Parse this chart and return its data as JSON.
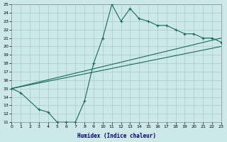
{
  "xlabel": "Humidex (Indice chaleur)",
  "bg_color": "#cce8e8",
  "grid_color": "#aacccc",
  "line_color": "#1a6a5a",
  "xlim": [
    0,
    23
  ],
  "ylim": [
    11,
    25
  ],
  "xticks": [
    0,
    1,
    2,
    3,
    4,
    5,
    6,
    7,
    8,
    9,
    10,
    11,
    12,
    13,
    14,
    15,
    16,
    17,
    18,
    19,
    20,
    21,
    22,
    23
  ],
  "yticks": [
    11,
    12,
    13,
    14,
    15,
    16,
    17,
    18,
    19,
    20,
    21,
    22,
    23,
    24,
    25
  ],
  "curve_x": [
    0,
    1,
    3,
    4,
    5,
    6,
    7,
    8,
    9,
    10,
    11,
    12,
    13,
    14,
    15,
    16,
    17,
    18,
    19,
    20,
    21,
    22,
    23
  ],
  "curve_y": [
    15,
    14.5,
    12.5,
    12.2,
    11.0,
    11.0,
    11.0,
    13.5,
    18.0,
    21.0,
    25.0,
    23.0,
    24.5,
    23.3,
    23.0,
    22.5,
    22.5,
    22.0,
    21.5,
    21.5,
    21.0,
    21.0,
    20.5
  ],
  "line2_x": [
    0,
    23
  ],
  "line2_y": [
    15,
    21.0
  ],
  "line3_x": [
    0,
    23
  ],
  "line3_y": [
    15,
    20.0
  ]
}
